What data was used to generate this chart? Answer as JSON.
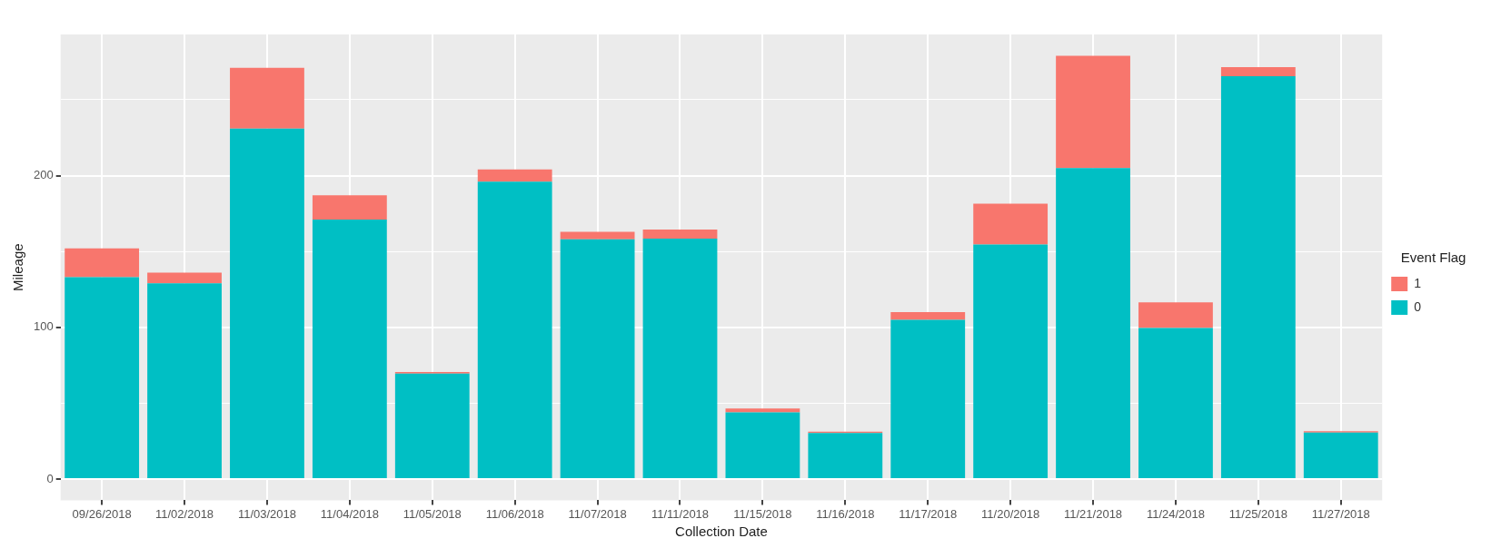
{
  "chart_data": {
    "type": "bar",
    "xlabel": "Collection Date",
    "ylabel": "Mileage",
    "legend_title": "Event Flag",
    "categories": [
      "09/26/2018",
      "11/02/2018",
      "11/03/2018",
      "11/04/2018",
      "11/05/2018",
      "11/06/2018",
      "11/07/2018",
      "11/11/2018",
      "11/15/2018",
      "11/16/2018",
      "11/17/2018",
      "11/20/2018",
      "11/21/2018",
      "11/24/2018",
      "11/25/2018",
      "11/27/2018"
    ],
    "series": [
      {
        "name": "0",
        "color": "#00bfc4",
        "values": [
          133,
          129,
          231,
          171,
          69.5,
          196,
          158,
          158.5,
          44,
          30.4,
          105,
          154.5,
          205,
          99.5,
          265.5,
          30.6
        ]
      },
      {
        "name": "1",
        "color": "#f8766d",
        "values": [
          19,
          7,
          40,
          16,
          1,
          8,
          5,
          6,
          2.5,
          0.8,
          5,
          27,
          74,
          17,
          6,
          1
        ]
      }
    ],
    "stacked": true,
    "ylim": [
      -14,
      293
    ],
    "yticks": [
      0,
      {
        "value": 50,
        "label": null
      },
      100,
      {
        "value": 150,
        "label": null
      },
      200,
      {
        "value": 250,
        "label": null
      }
    ],
    "grid": true,
    "legend": "right"
  }
}
